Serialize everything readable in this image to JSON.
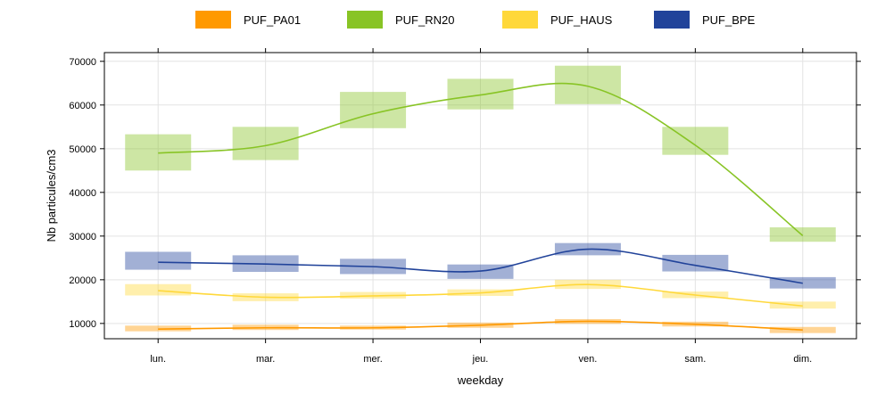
{
  "chart_data": {
    "type": "line",
    "xlabel": "weekday",
    "ylabel": "Nb particules/cm3",
    "categories": [
      "lun.",
      "mar.",
      "mer.",
      "jeu.",
      "ven.",
      "sam.",
      "dim."
    ],
    "ylim": [
      6500,
      72000
    ],
    "yticks": [
      10000,
      20000,
      30000,
      40000,
      50000,
      60000,
      70000
    ],
    "grid": true,
    "legend_position": "top",
    "series": [
      {
        "name": "PUF_PA01",
        "color": "#FF9900",
        "values": [
          8700,
          9000,
          9000,
          9600,
          10500,
          9800,
          8500
        ],
        "band_low": [
          8200,
          8500,
          8600,
          9000,
          9900,
          9300,
          7800
        ],
        "band_high": [
          9500,
          9700,
          9500,
          10200,
          11000,
          10400,
          9200
        ]
      },
      {
        "name": "PUF_RN20",
        "color": "#88C425",
        "values": [
          49000,
          50700,
          58000,
          62300,
          64300,
          50800,
          30100
        ],
        "band_low": [
          45000,
          47400,
          54700,
          59000,
          60200,
          48600,
          28700
        ],
        "band_high": [
          53300,
          55000,
          63000,
          66000,
          69000,
          55000,
          32000
        ]
      },
      {
        "name": "PUF_HAUS",
        "color": "#FFD83A",
        "values": [
          17500,
          16000,
          16300,
          17000,
          18900,
          16500,
          14000
        ],
        "band_low": [
          16400,
          15100,
          15700,
          16300,
          17900,
          15800,
          13400
        ],
        "band_high": [
          19000,
          16900,
          17200,
          17800,
          20000,
          17300,
          15000
        ]
      },
      {
        "name": "PUF_BPE",
        "color": "#21439A",
        "values": [
          24000,
          23600,
          23000,
          22000,
          27000,
          23300,
          19200
        ],
        "band_low": [
          22300,
          21800,
          21300,
          20200,
          25600,
          21900,
          18000
        ],
        "band_high": [
          26400,
          25600,
          24800,
          23500,
          28400,
          25700,
          20600
        ]
      }
    ]
  }
}
